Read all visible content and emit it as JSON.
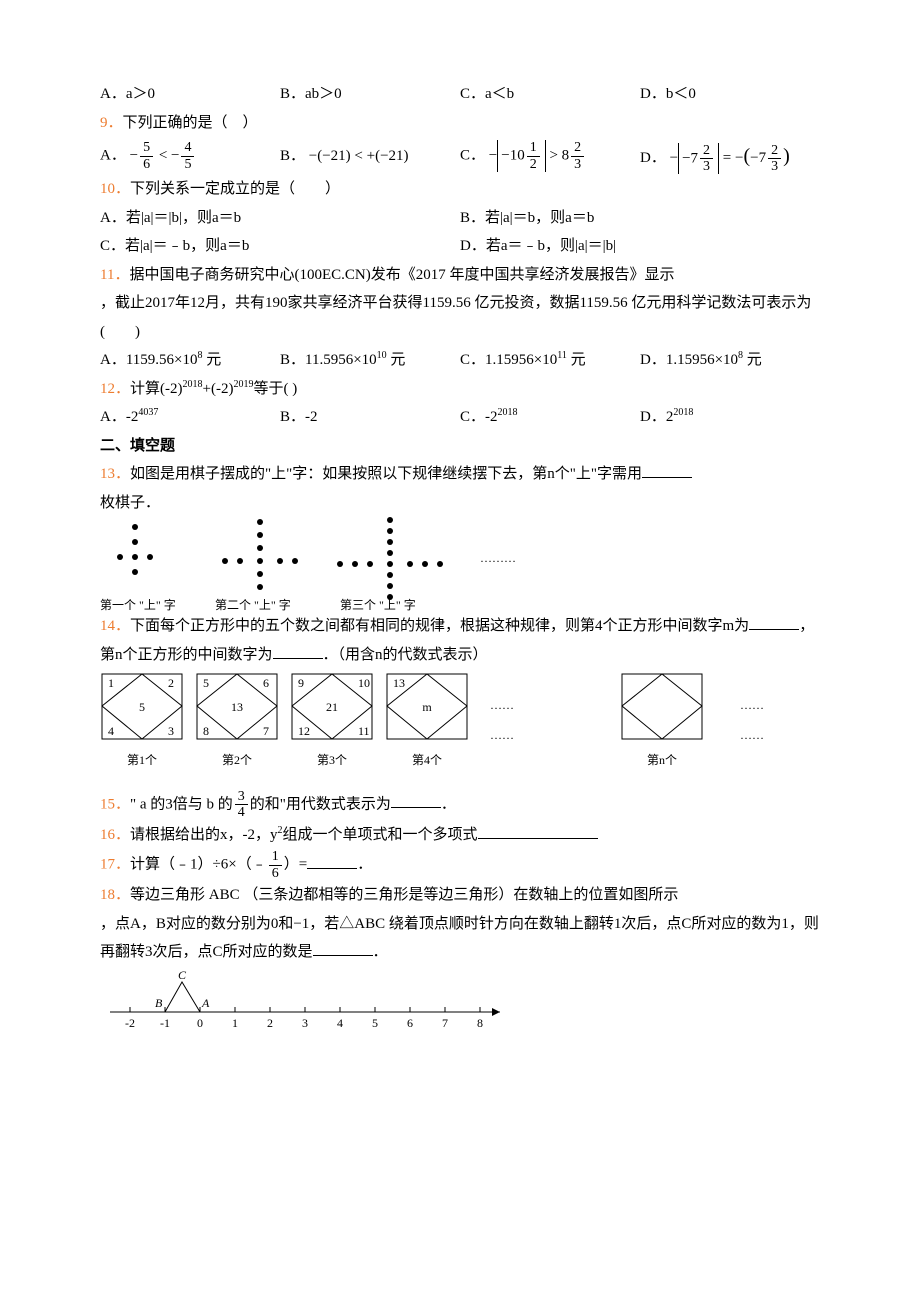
{
  "q8": {
    "opts": [
      "A．a＞0",
      "B．ab＞0",
      "C．a＜b",
      "D．b＜0"
    ]
  },
  "q9": {
    "num": "9．",
    "stem": "下列正确的是（　）",
    "A": "A．",
    "B": "B．",
    "C": "C．",
    "D": "D．",
    "A_lhs_n": "5",
    "A_lhs_d": "6",
    "A_rhs_n": "4",
    "A_rhs_d": "5",
    "B_txt": "−(−21) < +(−21)",
    "C_in_n1": "1",
    "C_in_d1": "2",
    "C_rhs_n": "2",
    "C_rhs_d": "3",
    "D_n": "2",
    "D_d": "3"
  },
  "q10": {
    "num": "10．",
    "stem": "下列关系一定成立的是（　　）",
    "A": "A．若|a|＝|b|，则a＝b",
    "B": "B．若|a|＝b，则a＝b",
    "C": "C．若|a|＝﹣b，则a＝b",
    "D": "D．若a＝﹣b，则|a|＝|b|"
  },
  "q11": {
    "num": "11．",
    "stem1": "据中国电子商务研究中心(100EC.CN)发布《2017 年度中国共享经济发展报告》显示",
    "stem2": "，截止2017年12月，共有190家共享经济平台获得1159.56 亿元投资，数据1159.56 亿元用科学记数法可表示为(　　)",
    "A_pre": "A．1159.56×10",
    "A_sup": "8",
    "A_post": " 元",
    "B_pre": "B．11.5956×10",
    "B_sup": "10",
    "B_post": " 元",
    "C_pre": "C．1.15956×10",
    "C_sup": "11",
    "C_post": " 元",
    "D_pre": "D．1.15956×10",
    "D_sup": "8",
    "D_post": " 元"
  },
  "q12": {
    "num": "12．",
    "stem_pre": "计算(-2)",
    "s1": "2018",
    "mid": "+(-2)",
    "s2": "2019",
    "post": "等于(  )",
    "A_pre": "A．-2",
    "A_sup": "4037",
    "B": "B．-2",
    "C_pre": "C．-2",
    "C_sup": "2018",
    "D_pre": "D．2",
    "D_sup": "2018"
  },
  "fill_header": "二、填空题",
  "q13": {
    "num": "13．",
    "stem1": "如图是用棋子摆成的\"上\"字：如果按照以下规律继续摆下去，第n个\"上\"字需用",
    "stem2": "枚棋子．",
    "cap1": "第一个 \"上\" 字",
    "cap2": "第二个 \"上\" 字",
    "cap3": "第三个 \"上\" 字",
    "dots": "………"
  },
  "q14": {
    "num": "14．",
    "stem1": "下面每个正方形中的五个数之间都有相同的规律，根据这种规律，则第4个正方形中间数字m为",
    "stem2": "，第n个正方形的中间数字为",
    "stem3": "．（用含n的代数式表示）",
    "b1": {
      "tl": "1",
      "tr": "2",
      "bl": "4",
      "br": "3",
      "c": "5",
      "cap": "第1个"
    },
    "b2": {
      "tl": "5",
      "tr": "6",
      "bl": "8",
      "br": "7",
      "c": "13",
      "cap": "第2个"
    },
    "b3": {
      "tl": "9",
      "tr": "10",
      "bl": "12",
      "br": "11",
      "c": "21",
      "cap": "第3个"
    },
    "b4": {
      "tl": "13",
      "tr": "",
      "bl": "",
      "br": "",
      "c": "m",
      "cap": "第4个"
    },
    "bn": {
      "cap": "第n个"
    },
    "dots": "……"
  },
  "q15": {
    "num": "15．",
    "pre": "\" a 的3倍与 b 的",
    "fn": "3",
    "fd": "4",
    "post": "的和\"用代数式表示为",
    "end": "．"
  },
  "q16": {
    "num": "16．",
    "pre": "请根据给出的x，-2，y",
    "sup": "2",
    "post": "组成一个单项式和一个多项式"
  },
  "q17": {
    "num": "17．",
    "pre": "计算（﹣1）÷6×（﹣",
    "fn": "1",
    "fd": "6",
    "post": "）=",
    "end": "．"
  },
  "q18": {
    "num": "18．",
    "stem1": "等边三角形 ABC （三条边都相等的三角形是等边三角形）在数轴上的位置如图所示",
    "stem2": "，点A，B对应的数分别为0和−1，若△ABC 绕着顶点顺时针方向在数轴上翻转1次后，点C所对应的数为1，则再翻转3次后，点C所对应的数是",
    "stem3": "．",
    "ticks": [
      "-2",
      "-1",
      "0",
      "1",
      "2",
      "3",
      "4",
      "5",
      "6",
      "7",
      "8"
    ],
    "labB": "B",
    "labA": "A",
    "labC": "C"
  },
  "style": {
    "accent": "#ed7d31",
    "text": "#000000",
    "bg": "#ffffff"
  }
}
